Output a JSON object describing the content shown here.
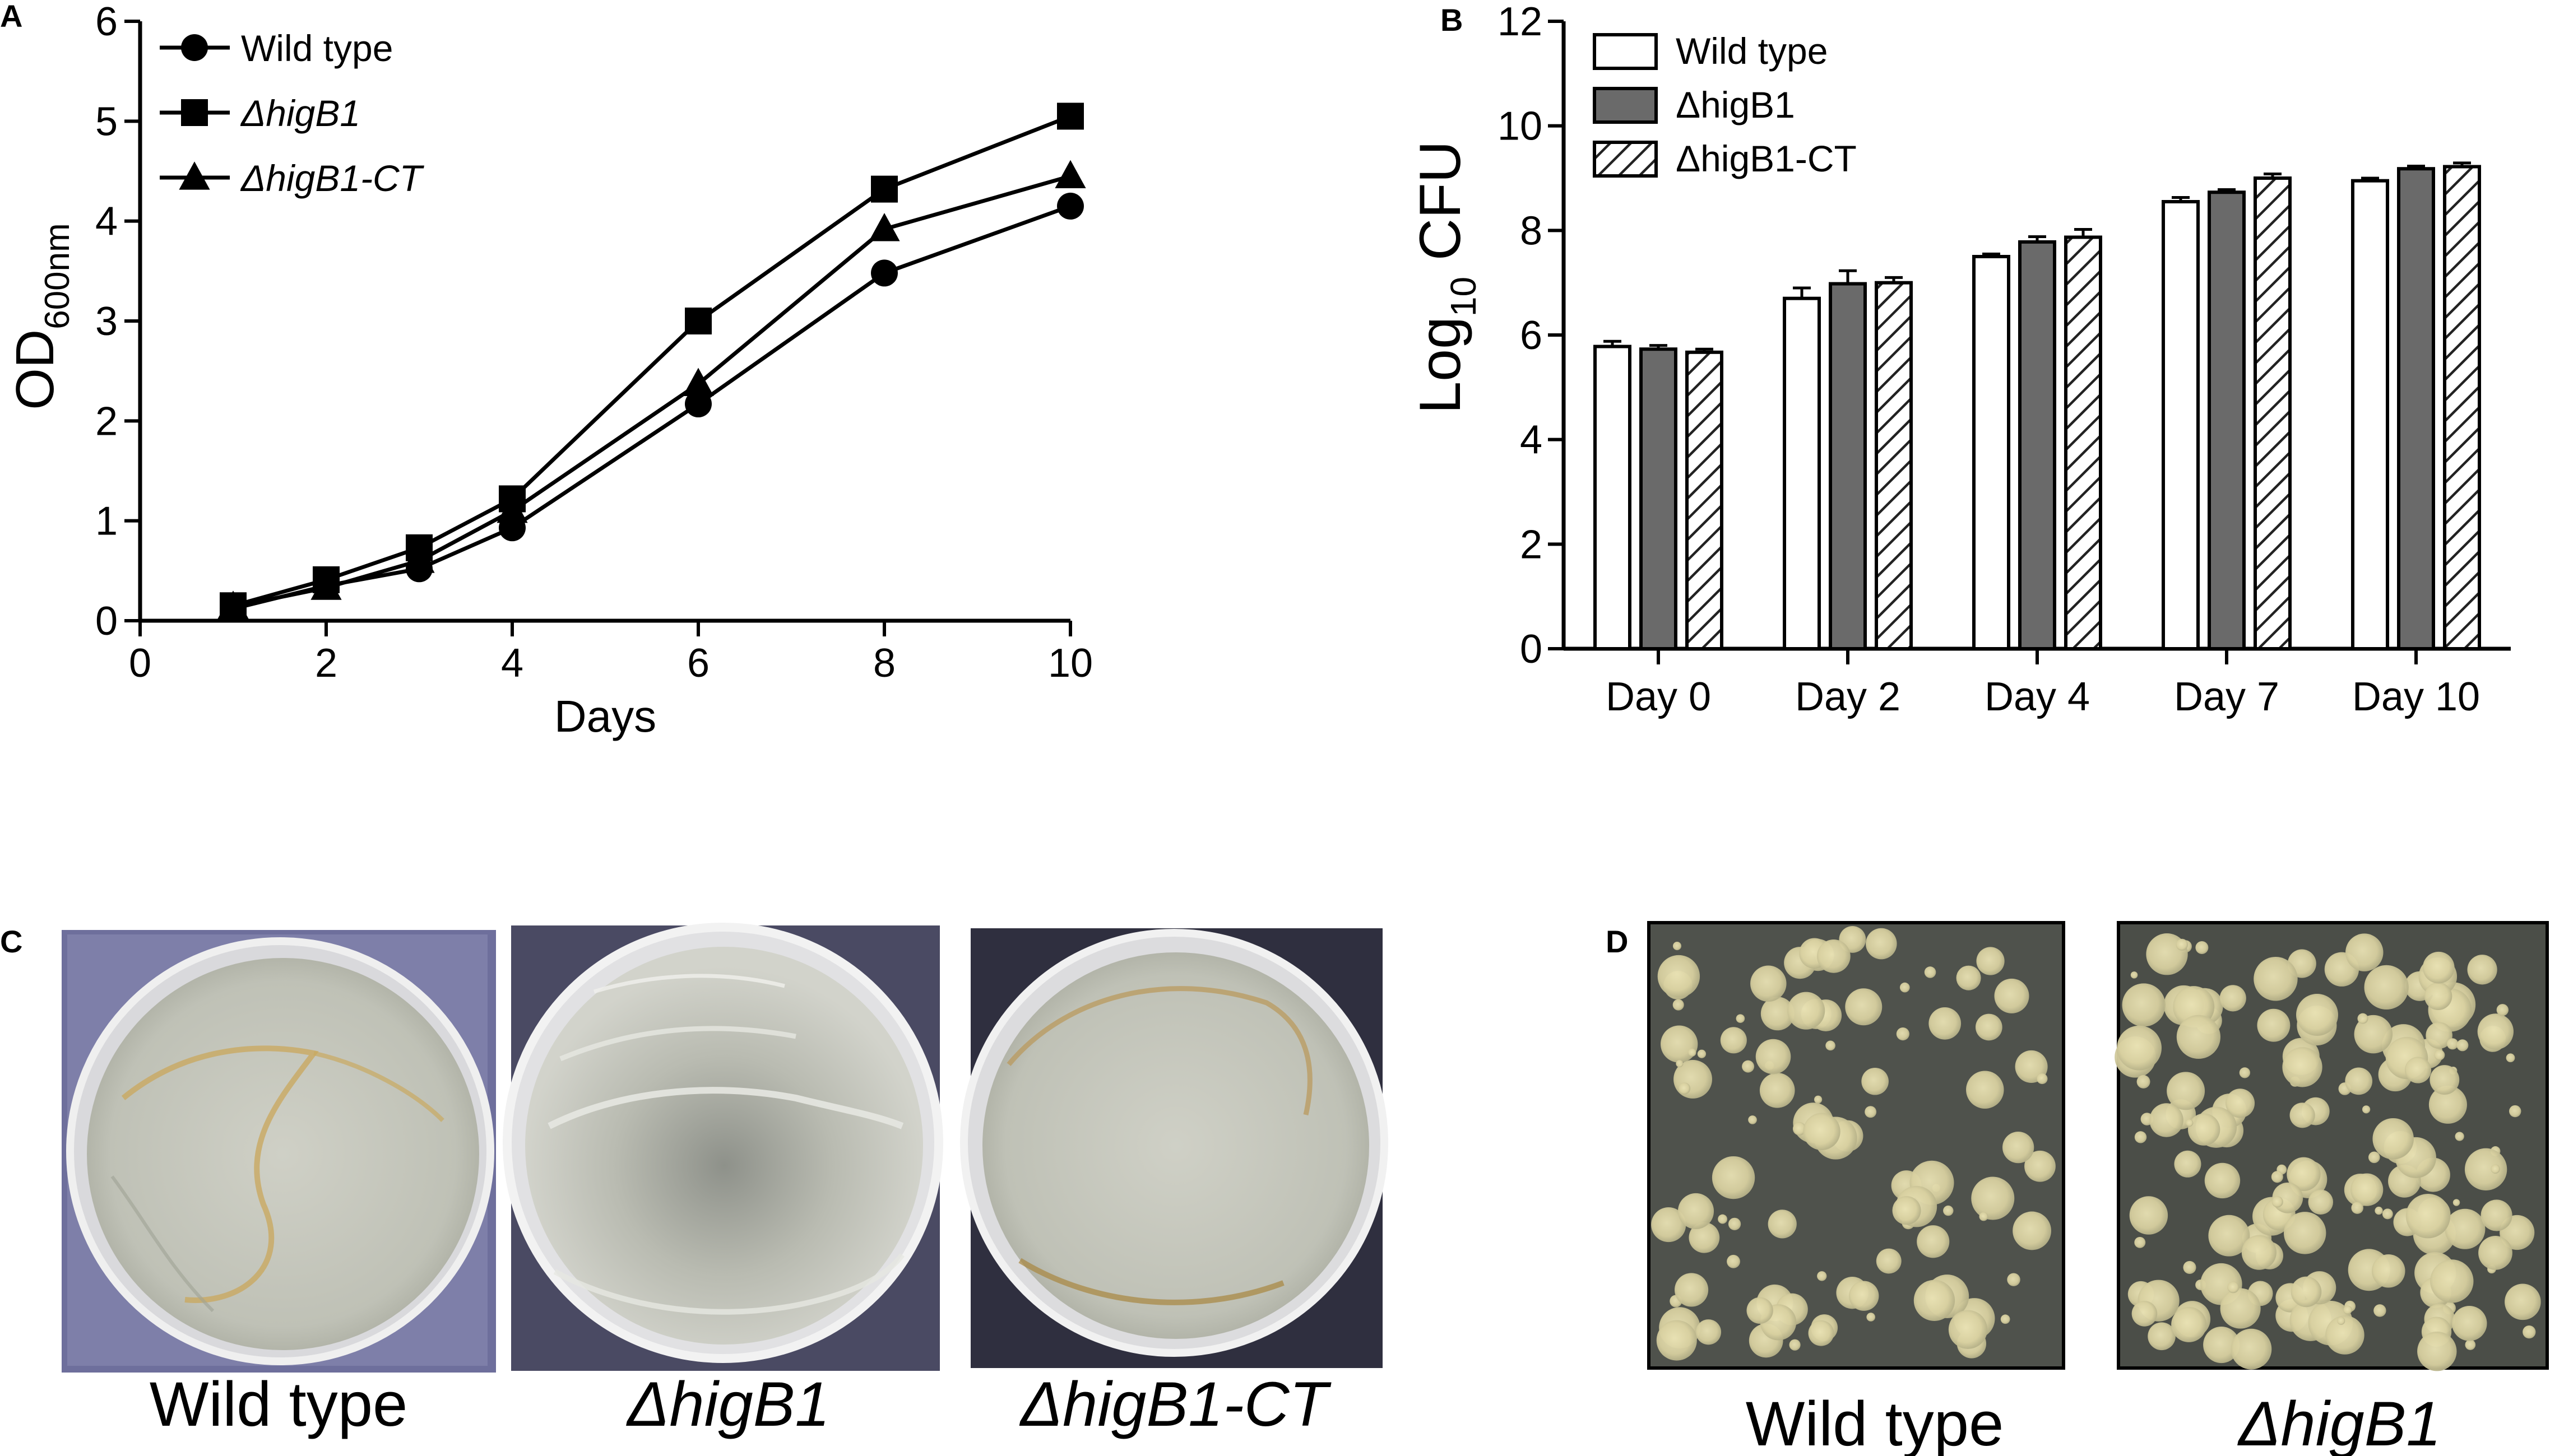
{
  "panels": {
    "A": {
      "label": "A"
    },
    "B": {
      "label": "B"
    },
    "C": {
      "label": "C",
      "captions": [
        "Wild type",
        "ΔhigB1",
        "ΔhigB1-CT"
      ]
    },
    "D": {
      "label": "D",
      "captions": [
        "Wild type",
        "ΔhigB1"
      ]
    }
  },
  "chart_data": [
    {
      "panel": "A",
      "type": "line",
      "xlabel": "Days",
      "ylabel": "OD",
      "ylabel_sub": "600nm",
      "xlim": [
        0,
        10
      ],
      "ylim": [
        0,
        6
      ],
      "xticks": [
        "0",
        "2",
        "4",
        "6",
        "8",
        "10"
      ],
      "yticks": [
        "0",
        "1",
        "2",
        "3",
        "4",
        "5",
        "6"
      ],
      "x": [
        1,
        2,
        3,
        4,
        6,
        8,
        10
      ],
      "series": [
        {
          "name": "Wild type",
          "marker": "circle",
          "italic": false,
          "values": [
            0.12,
            0.35,
            0.52,
            0.93,
            2.17,
            3.48,
            4.15
          ]
        },
        {
          "name": "ΔhigB1",
          "marker": "square",
          "italic": true,
          "values": [
            0.15,
            0.41,
            0.73,
            1.22,
            3.0,
            4.32,
            5.05
          ]
        },
        {
          "name": "ΔhigB1-CT",
          "marker": "triangle",
          "italic": true,
          "values": [
            0.14,
            0.33,
            0.6,
            1.1,
            2.37,
            3.92,
            4.45
          ]
        }
      ],
      "legend": "top-left",
      "grid": false
    },
    {
      "panel": "B",
      "type": "bar",
      "xlabel": "",
      "ylabel": "Log",
      "ylabel_sub": "10",
      "ylabel_rest": " CFU",
      "ylim": [
        0,
        12
      ],
      "yticks": [
        "0",
        "2",
        "4",
        "6",
        "8",
        "10",
        "12"
      ],
      "categories": [
        "Day 0",
        "Day 2",
        "Day 4",
        "Day 7",
        "Day 10"
      ],
      "series": [
        {
          "name": "Wild type",
          "fill": "#ffffff",
          "pattern": "none",
          "values": [
            5.78,
            6.7,
            7.5,
            8.55,
            8.95
          ],
          "errors": [
            0.1,
            0.2,
            0.05,
            0.08,
            0.05
          ]
        },
        {
          "name": "ΔhigB1",
          "fill": "#6a6a6a",
          "pattern": "none",
          "values": [
            5.73,
            6.98,
            7.78,
            8.73,
            9.18
          ],
          "errors": [
            0.07,
            0.25,
            0.1,
            0.05,
            0.05
          ]
        },
        {
          "name": "ΔhigB1-CT",
          "fill": "#ffffff",
          "pattern": "hatch",
          "values": [
            5.67,
            7.0,
            7.87,
            9.0,
            9.22
          ],
          "errors": [
            0.06,
            0.1,
            0.15,
            0.08,
            0.07
          ]
        }
      ],
      "legend": "top-left",
      "grid": false
    }
  ]
}
